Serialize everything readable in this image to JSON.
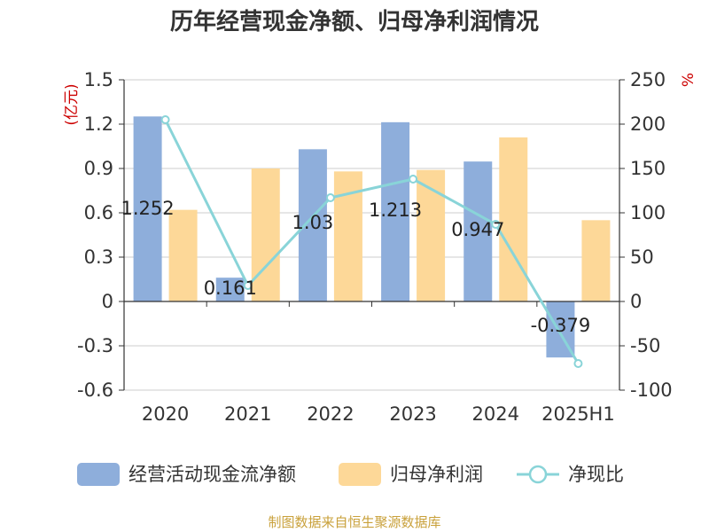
{
  "chart_data": {
    "type": "bar",
    "title": "历年经营现金净额、归母净利润情况",
    "categories": [
      "2020",
      "2021",
      "2022",
      "2023",
      "2024",
      "2025H1"
    ],
    "series": [
      {
        "name": "经营活动现金流净额",
        "type": "bar",
        "axis": "left",
        "color": "#8eaedb",
        "values": [
          1.252,
          0.161,
          1.03,
          1.213,
          0.947,
          -0.379
        ],
        "labels": [
          "1.252",
          "0.161",
          "1.03",
          "1.213",
          "0.947",
          "-0.379"
        ]
      },
      {
        "name": "归母净利润",
        "type": "bar",
        "axis": "left",
        "color": "#fdd898",
        "values": [
          0.62,
          0.9,
          0.88,
          0.89,
          1.11,
          0.55
        ]
      },
      {
        "name": "净现比",
        "type": "line",
        "axis": "right",
        "color": "#89d4d8",
        "values": [
          205,
          18,
          117,
          138,
          87,
          -70
        ]
      }
    ],
    "y_left": {
      "unit": "(亿元)",
      "min": -0.6,
      "max": 1.5,
      "ticks": [
        -0.6,
        -0.3,
        0,
        0.3,
        0.6,
        0.9,
        1.2,
        1.5
      ],
      "tick_labels": [
        "-0.6",
        "-0.3",
        "0",
        "0.3",
        "0.6",
        "0.9",
        "1.2",
        "1.5"
      ]
    },
    "y_right": {
      "unit": "%",
      "min": -100,
      "max": 250,
      "ticks": [
        -100,
        -50,
        0,
        50,
        100,
        150,
        200,
        250
      ],
      "tick_labels": [
        "-100",
        "-50",
        "0",
        "50",
        "100",
        "150",
        "200",
        "250"
      ]
    },
    "grid": true,
    "legend_position": "bottom"
  },
  "source": "制图数据来自恒生聚源数据库"
}
